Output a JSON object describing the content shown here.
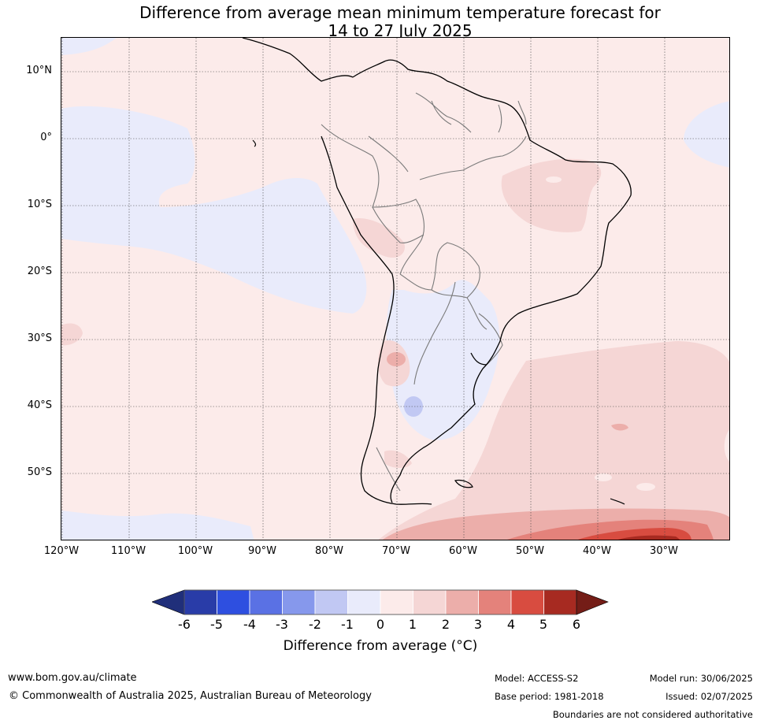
{
  "title": {
    "line1": "Difference from average mean minimum temperature forecast for",
    "line2": "14 to 27 July 2025"
  },
  "map": {
    "lat_labels": [
      "10°N",
      "0°",
      "10°S",
      "20°S",
      "30°S",
      "40°S",
      "50°S"
    ],
    "lon_labels": [
      "120°W",
      "110°W",
      "100°W",
      "90°W",
      "80°W",
      "70°W",
      "60°W",
      "50°W",
      "40°W",
      "30°W"
    ],
    "colors": {
      "near_avg_warm": "#fcebea",
      "near_avg_cool": "#e9ebfb",
      "warm_1_2": "#f5d6d5",
      "warm_2_3": "#ecaeaa",
      "warm_3_4": "#e4827b",
      "warm_4_5": "#d84c40",
      "warm_5_6": "#a72a21",
      "cool_1_2": "#c1c8f3"
    }
  },
  "legend": {
    "ticks": [
      "-6",
      "-5",
      "-4",
      "-3",
      "-2",
      "-1",
      "0",
      "1",
      "2",
      "3",
      "4",
      "5",
      "6"
    ],
    "colors": [
      "#293ca8",
      "#2e4fe0",
      "#5a71e4",
      "#8698ec",
      "#c1c8f3",
      "#e9ebfb",
      "#fcebea",
      "#f5d6d5",
      "#ecaeaa",
      "#e4827b",
      "#d84c40",
      "#a72a21"
    ],
    "low_extend_color": "#202f7a",
    "high_extend_color": "#741d17",
    "label": "Difference from average (°C)"
  },
  "footer": {
    "website": "www.bom.gov.au/climate",
    "copyright": "© Commonwealth of Australia 2025, Australian Bureau of Meteorology",
    "model": "Model: ACCESS-S2",
    "base_period": "Base period: 1981-2018",
    "model_run": "Model run: 30/06/2025",
    "issued": "Issued: 02/07/2025",
    "disclaimer": "Boundaries are not considered authoritative"
  }
}
